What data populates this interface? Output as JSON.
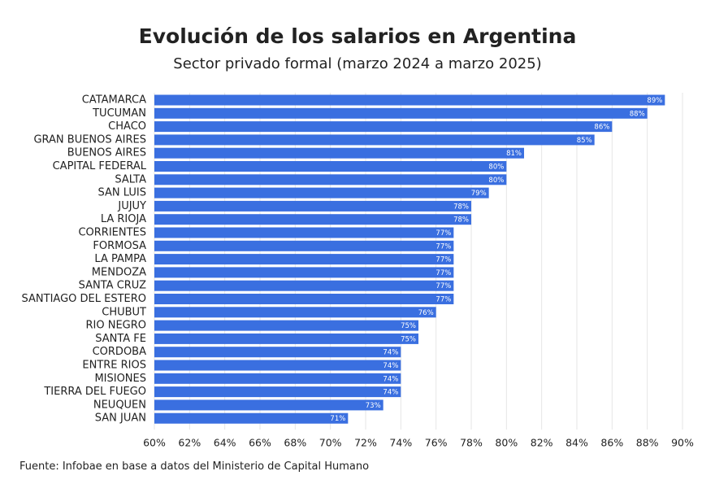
{
  "title": "Evolución de los salarios en Argentina",
  "subtitle": "Sector privado formal (marzo 2024 a marzo 2025)",
  "source": "Fuente: Infobae en base a datos del Ministerio de Capital Humano",
  "colors": {
    "bar": "#3a6fe0",
    "grid": "#e6e6e6",
    "text": "#222222"
  },
  "chart_data": {
    "type": "bar",
    "orientation": "horizontal",
    "title": "Evolución de los salarios en Argentina",
    "subtitle": "Sector privado formal (marzo 2024 a marzo 2025)",
    "xlim": [
      60,
      90
    ],
    "x_ticks": [
      "60%",
      "62%",
      "64%",
      "66%",
      "68%",
      "70%",
      "72%",
      "74%",
      "76%",
      "78%",
      "80%",
      "82%",
      "84%",
      "86%",
      "88%",
      "90%"
    ],
    "grid": true,
    "categories": [
      "CATAMARCA",
      "TUCUMAN",
      "CHACO",
      "GRAN BUENOS AIRES",
      "BUENOS AIRES",
      "CAPITAL FEDERAL",
      "SALTA",
      "SAN LUIS",
      "JUJUY",
      "LA RIOJA",
      "CORRIENTES",
      "FORMOSA",
      "LA PAMPA",
      "MENDOZA",
      "SANTA CRUZ",
      "SANTIAGO DEL ESTERO",
      "CHUBUT",
      "RIO NEGRO",
      "SANTA FE",
      "CORDOBA",
      "ENTRE RIOS",
      "MISIONES",
      "TIERRA DEL FUEGO",
      "NEUQUEN",
      "SAN JUAN"
    ],
    "values": [
      89,
      88,
      86,
      85,
      81,
      80,
      80,
      79,
      78,
      78,
      77,
      77,
      77,
      77,
      77,
      77,
      76,
      75,
      75,
      74,
      74,
      74,
      74,
      73,
      71
    ],
    "data_labels": [
      "89%",
      "88%",
      "86%",
      "85%",
      "81%",
      "80%",
      "80%",
      "79%",
      "78%",
      "78%",
      "77%",
      "77%",
      "77%",
      "77%",
      "77%",
      "77%",
      "76%",
      "75%",
      "75%",
      "74%",
      "74%",
      "74%",
      "74%",
      "73%",
      "71%"
    ]
  }
}
